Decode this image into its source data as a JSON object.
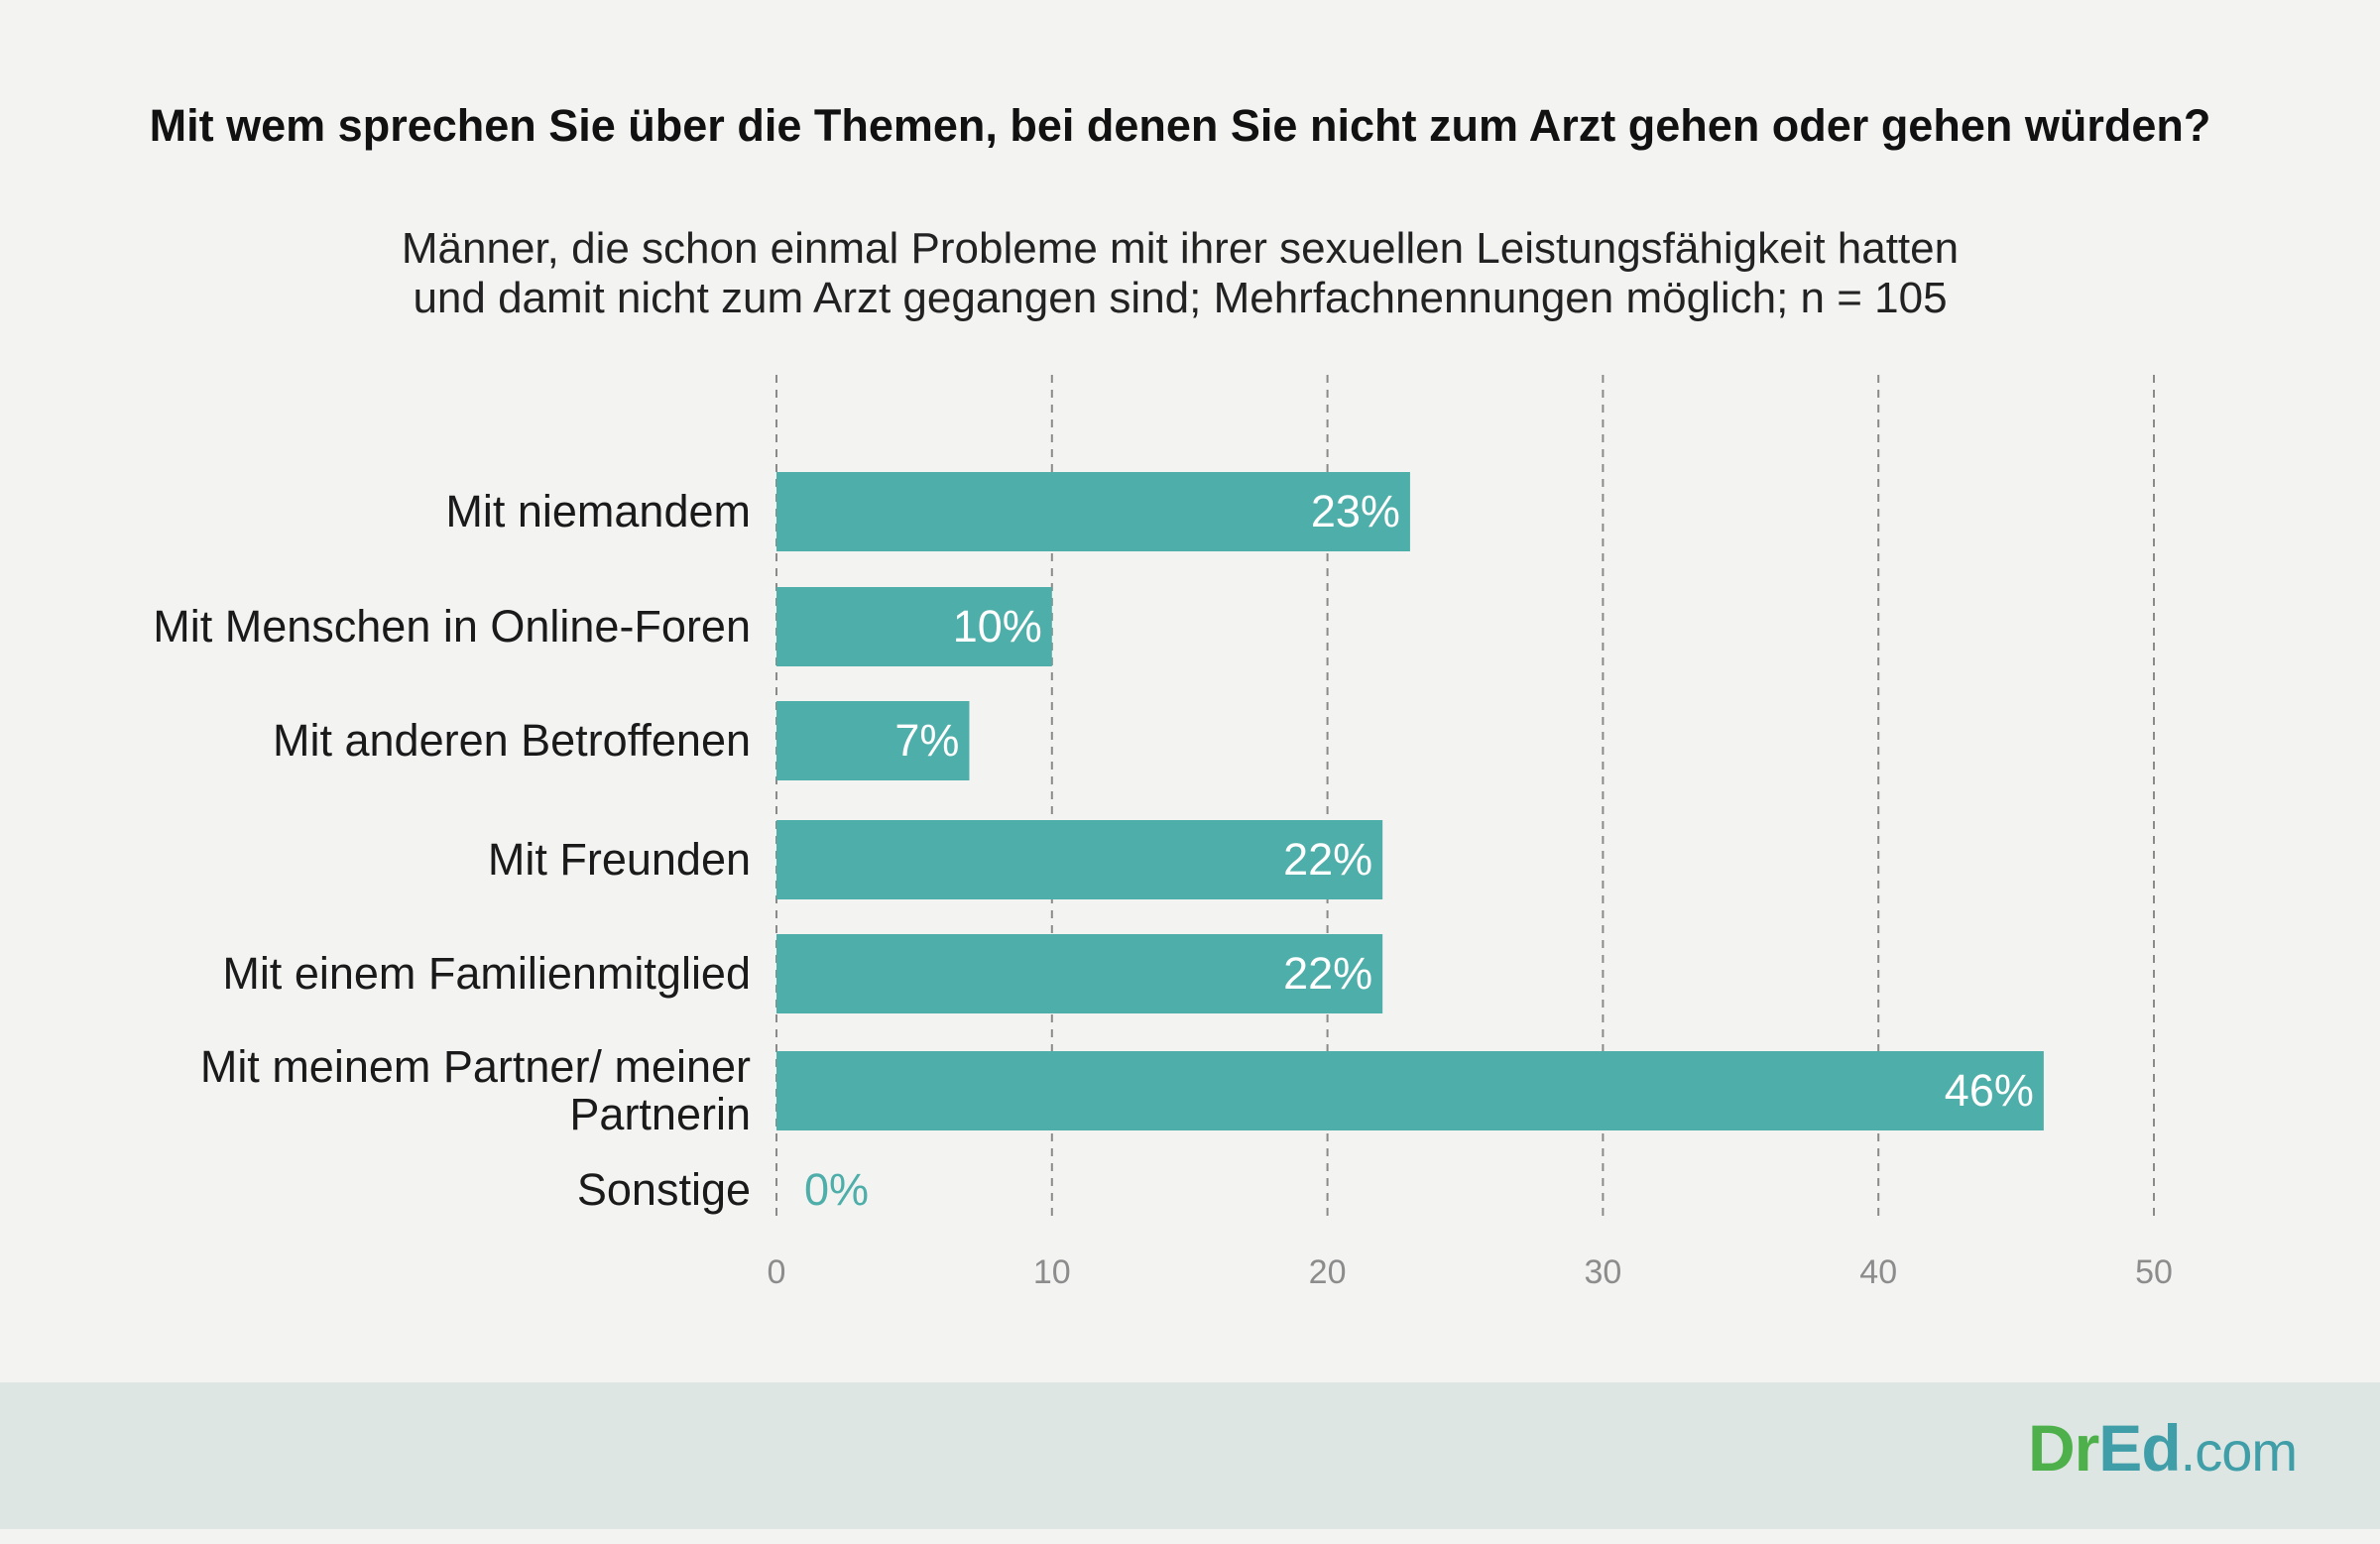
{
  "chart_data": {
    "type": "bar",
    "orientation": "horizontal",
    "title": "Mit wem sprechen Sie über die Themen, bei denen Sie nicht zum Arzt gehen oder gehen würden?",
    "subtitle_lines": [
      "Männer, die schon einmal Probleme mit ihrer sexuellen Leistungsfähigkeit hatten",
      "und damit nicht zum Arzt gegangen sind; Mehrfachnennungen möglich; n = 105"
    ],
    "categories": [
      [
        "Mit niemandem"
      ],
      [
        "Mit Menschen in Online-Foren"
      ],
      [
        "Mit anderen Betroffenen"
      ],
      [
        "Mit Freunden"
      ],
      [
        "Mit einem Familienmitglied"
      ],
      [
        "Mit meinem Partner/ meiner",
        "Partnerin"
      ],
      [
        "Sonstige"
      ]
    ],
    "values": [
      23,
      10,
      7,
      22,
      22,
      46,
      0
    ],
    "value_labels": [
      "23%",
      "10%",
      "7%",
      "22%",
      "22%",
      "46%",
      "0%"
    ],
    "xlim": [
      0,
      50
    ],
    "xticks": [
      "0",
      "10",
      "20",
      "30",
      "40",
      "50"
    ],
    "grid": "vertical-dashed",
    "bar_color": "#4eaea9"
  },
  "branding": {
    "logo_part1": "Dr",
    "logo_part2": "Ed",
    "logo_part3": ".com"
  }
}
